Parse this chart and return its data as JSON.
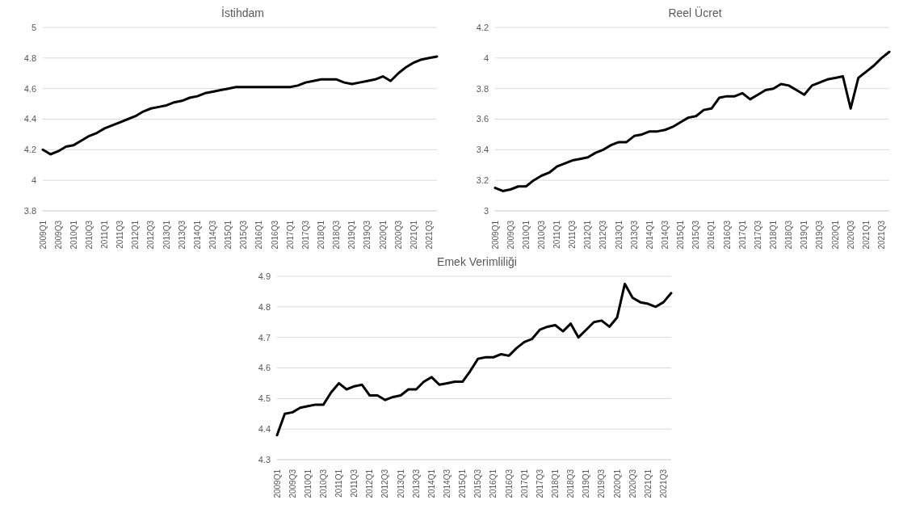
{
  "chart_data": [
    {
      "type": "line",
      "title": "İstihdam",
      "categories": [
        "2009Q1",
        null,
        "2009Q3",
        null,
        "2010Q1",
        null,
        "2010Q3",
        null,
        "2011Q1",
        null,
        "2011Q3",
        null,
        "2012Q1",
        null,
        "2012Q3",
        null,
        "2013Q1",
        null,
        "2013Q3",
        null,
        "2014Q1",
        null,
        "2014Q3",
        null,
        "2015Q1",
        null,
        "2015Q3",
        null,
        "2016Q1",
        null,
        "2016Q3",
        null,
        "2017Q1",
        null,
        "2017Q3",
        null,
        "2018Q1",
        null,
        "2018Q3",
        null,
        "2019Q1",
        null,
        "2019Q3",
        null,
        "2020Q1",
        null,
        "2020Q3",
        null,
        "2021Q1",
        null,
        "2021Q3",
        null
      ],
      "series": [
        {
          "color": "#000000",
          "values": [
            4.2,
            4.17,
            4.19,
            4.22,
            4.23,
            4.26,
            4.29,
            4.31,
            4.34,
            4.36,
            4.38,
            4.4,
            4.42,
            4.45,
            4.47,
            4.48,
            4.49,
            4.51,
            4.52,
            4.54,
            4.55,
            4.57,
            4.58,
            4.59,
            4.6,
            4.61,
            4.61,
            4.61,
            4.61,
            4.61,
            4.61,
            4.61,
            4.61,
            4.62,
            4.64,
            4.65,
            4.66,
            4.66,
            4.66,
            4.64,
            4.63,
            4.64,
            4.65,
            4.66,
            4.68,
            4.65,
            4.7,
            4.74,
            4.77,
            4.79,
            4.8,
            4.81
          ]
        }
      ],
      "ylim": [
        3.8,
        5
      ],
      "yticks": [
        3.8,
        4,
        4.2,
        4.4,
        4.6,
        4.8,
        5
      ],
      "grid": "y"
    },
    {
      "type": "line",
      "title": "Reel Ücret",
      "categories": [
        "2009Q1",
        null,
        "2009Q3",
        null,
        "2010Q1",
        null,
        "2010Q3",
        null,
        "2011Q1",
        null,
        "2011Q3",
        null,
        "2012Q1",
        null,
        "2012Q3",
        null,
        "2013Q1",
        null,
        "2013Q3",
        null,
        "2014Q1",
        null,
        "2014Q3",
        null,
        "2015Q1",
        null,
        "2015Q3",
        null,
        "2016Q1",
        null,
        "2016Q3",
        null,
        "2017Q1",
        null,
        "2017Q3",
        null,
        "2018Q1",
        null,
        "2018Q3",
        null,
        "2019Q1",
        null,
        "2019Q3",
        null,
        "2020Q1",
        null,
        "2020Q3",
        null,
        "2021Q1",
        null,
        "2021Q3",
        null
      ],
      "series": [
        {
          "color": "#000000",
          "values": [
            3.15,
            3.13,
            3.14,
            3.16,
            3.16,
            3.2,
            3.23,
            3.25,
            3.29,
            3.31,
            3.33,
            3.34,
            3.35,
            3.38,
            3.4,
            3.43,
            3.45,
            3.45,
            3.49,
            3.5,
            3.52,
            3.52,
            3.53,
            3.55,
            3.58,
            3.61,
            3.62,
            3.66,
            3.67,
            3.74,
            3.75,
            3.75,
            3.77,
            3.73,
            3.76,
            3.79,
            3.8,
            3.83,
            3.82,
            3.79,
            3.76,
            3.82,
            3.84,
            3.86,
            3.87,
            3.88,
            3.67,
            3.87,
            3.91,
            3.95,
            4.0,
            4.04
          ]
        }
      ],
      "ylim": [
        3,
        4.2
      ],
      "yticks": [
        3,
        3.2,
        3.4,
        3.6,
        3.8,
        4,
        4.2
      ],
      "grid": "y"
    },
    {
      "type": "line",
      "title": "Emek Verimliliği",
      "categories": [
        "2009Q1",
        null,
        "2009Q3",
        null,
        "2010Q1",
        null,
        "2010Q3",
        null,
        "2011Q1",
        null,
        "2011Q3",
        null,
        "2012Q1",
        null,
        "2012Q3",
        null,
        "2013Q1",
        null,
        "2013Q3",
        null,
        "2014Q1",
        null,
        "2014Q3",
        null,
        "2015Q1",
        null,
        "2015Q3",
        null,
        "2016Q1",
        null,
        "2016Q3",
        null,
        "2017Q1",
        null,
        "2017Q3",
        null,
        "2018Q1",
        null,
        "2018Q3",
        null,
        "2019Q1",
        null,
        "2019Q3",
        null,
        "2020Q1",
        null,
        "2020Q3",
        null,
        "2021Q1",
        null,
        "2021Q3",
        null
      ],
      "series": [
        {
          "color": "#000000",
          "values": [
            4.38,
            4.45,
            4.455,
            4.47,
            4.475,
            4.48,
            4.48,
            4.52,
            4.55,
            4.53,
            4.54,
            4.545,
            4.51,
            4.51,
            4.495,
            4.505,
            4.51,
            4.53,
            4.53,
            4.555,
            4.57,
            4.545,
            4.55,
            4.555,
            4.555,
            4.59,
            4.63,
            4.635,
            4.635,
            4.645,
            4.64,
            4.665,
            4.685,
            4.695,
            4.725,
            4.735,
            4.74,
            4.72,
            4.745,
            4.7,
            4.725,
            4.75,
            4.755,
            4.735,
            4.765,
            4.875,
            4.83,
            4.815,
            4.81,
            4.8,
            4.815,
            4.845
          ]
        }
      ],
      "ylim": [
        4.3,
        4.9
      ],
      "yticks": [
        4.3,
        4.4,
        4.5,
        4.6,
        4.7,
        4.8,
        4.9
      ],
      "grid": "y"
    }
  ]
}
